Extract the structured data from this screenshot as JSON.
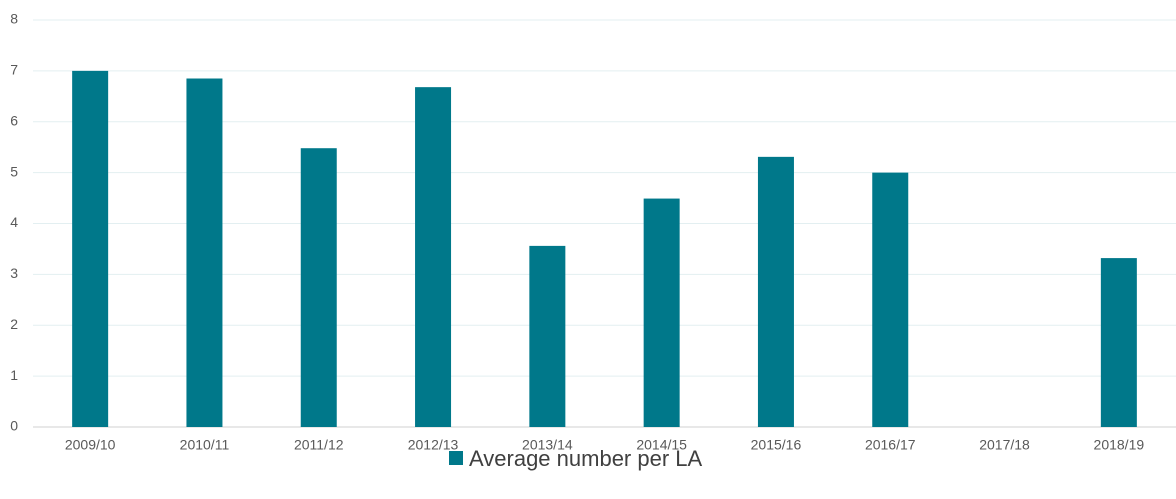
{
  "chart_data": {
    "type": "bar",
    "categories": [
      "2009/10",
      "2010/11",
      "2011/12",
      "2012/13",
      "2013/14",
      "2014/15",
      "2015/16",
      "2016/17",
      "2017/18",
      "2018/19"
    ],
    "series": [
      {
        "name": "Average number per LA",
        "color": "#00788a",
        "values": [
          7,
          6.85,
          5.48,
          6.68,
          3.56,
          4.49,
          5.31,
          5.0,
          null,
          3.32
        ]
      }
    ],
    "ylim": [
      0,
      8
    ],
    "yticks": [
      0,
      1,
      2,
      3,
      4,
      5,
      6,
      7,
      8
    ],
    "grid": true,
    "legend": "bottom"
  }
}
